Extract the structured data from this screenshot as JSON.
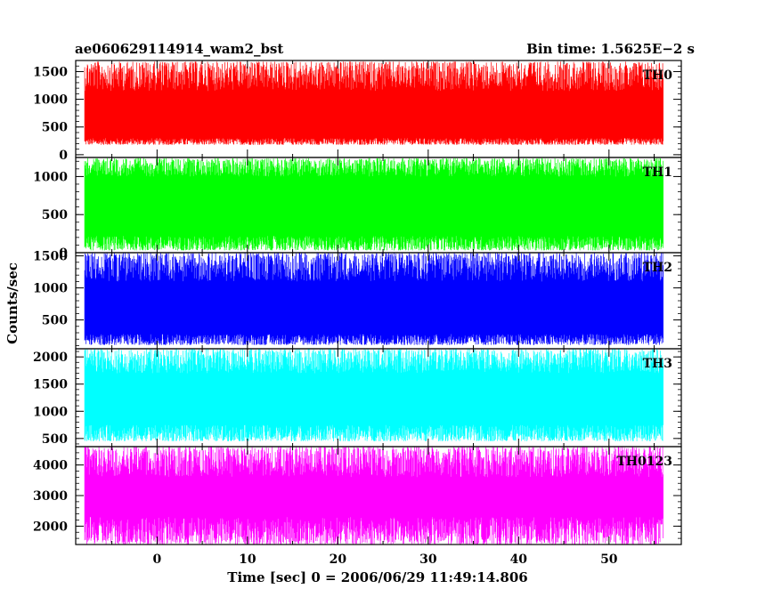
{
  "chart_data": {
    "type": "line",
    "title": "ae060629114914_wam2_bst",
    "subtitle": "Bin time: 1.5625E−2 s",
    "xlabel": "Time [sec] 0 = 2006/06/29 11:49:14.806",
    "ylabel": "Counts/sec",
    "xlim": [
      -9,
      58
    ],
    "x_ticks": [
      0,
      10,
      20,
      30,
      40,
      50
    ],
    "x_tick_labels": [
      "0",
      "10",
      "20",
      "30",
      "40",
      "50"
    ],
    "x_data_range": [
      -8,
      56
    ],
    "grid": false,
    "series": [
      {
        "name": "TH0",
        "color": "#ff0000",
        "ylim": [
          -50,
          1700
        ],
        "y_ticks": [
          0,
          500,
          1000,
          1500
        ],
        "y_tick_labels": [
          "0",
          "500",
          "1000",
          "1500"
        ],
        "low": [
          180,
          300
        ],
        "high": [
          1150,
          1680
        ],
        "median": 700
      },
      {
        "name": "TH1",
        "color": "#00ff00",
        "ylim": [
          0,
          1250
        ],
        "y_ticks": [
          0,
          500,
          1000
        ],
        "y_tick_labels": [
          "0",
          "500",
          "1000"
        ],
        "low": [
          30,
          220
        ],
        "high": [
          1000,
          1240
        ],
        "median": 600
      },
      {
        "name": "TH2",
        "color": "#0000ff",
        "ylim": [
          50,
          1550
        ],
        "y_ticks": [
          500,
          1000,
          1500
        ],
        "y_tick_labels": [
          "500",
          "1000",
          "1500"
        ],
        "low": [
          110,
          280
        ],
        "high": [
          1100,
          1550
        ],
        "median": 650
      },
      {
        "name": "TH3",
        "color": "#00ffff",
        "ylim": [
          350,
          2150
        ],
        "y_ticks": [
          500,
          1000,
          1500,
          2000
        ],
        "y_tick_labels": [
          "500",
          "1000",
          "1500",
          "2000"
        ],
        "low": [
          450,
          750
        ],
        "high": [
          1700,
          2150
        ],
        "median": 1100
      },
      {
        "name": "TH0123",
        "color": "#ff00ff",
        "ylim": [
          1400,
          4600
        ],
        "y_ticks": [
          2000,
          3000,
          4000
        ],
        "y_tick_labels": [
          "2000",
          "3000",
          "4000"
        ],
        "low": [
          1400,
          2300
        ],
        "high": [
          3600,
          4600
        ],
        "median": 2900
      }
    ]
  }
}
